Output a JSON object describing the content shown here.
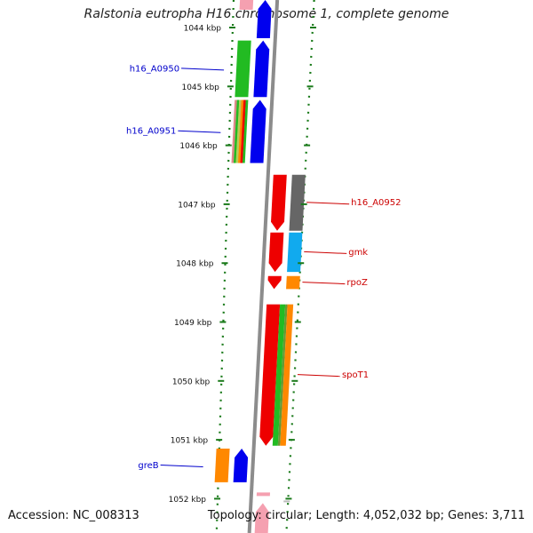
{
  "title": "Ralstonia eutropha H16 chromosome 1, complete genome",
  "footer": {
    "accession": "Accession: NC_008313",
    "summary": "Topology: circular; Length: 4,052,032 bp; Genes: 3,711"
  },
  "colors": {
    "backbone": "#8c8c8c",
    "ruler": "#1a7a1a",
    "forward_label": "#0000cc",
    "reverse_label": "#cc0000",
    "blue": "#0000ee",
    "green": "#22bb22",
    "red": "#ee0000",
    "gray": "#666666",
    "cyan": "#11aaee",
    "orange": "#ff8800",
    "pink": "#f5a0b0"
  },
  "ruler_ticks": [
    {
      "label": "1044 kbp",
      "kbp": 1044
    },
    {
      "label": "1045 kbp",
      "kbp": 1045
    },
    {
      "label": "1046 kbp",
      "kbp": 1046
    },
    {
      "label": "1047 kbp",
      "kbp": 1047
    },
    {
      "label": "1048 kbp",
      "kbp": 1048
    },
    {
      "label": "1049 kbp",
      "kbp": 1049
    },
    {
      "label": "1050 kbp",
      "kbp": 1050
    },
    {
      "label": "1051 kbp",
      "kbp": 1051
    },
    {
      "label": "1052 kbp",
      "kbp": 1052
    }
  ],
  "genes": [
    {
      "name": "h16_A0950",
      "strand": "forward",
      "start_kbp": 1044.22,
      "end_kbp": 1045.18
    },
    {
      "name": "h16_A0951",
      "strand": "forward",
      "start_kbp": 1045.22,
      "end_kbp": 1046.3
    },
    {
      "name": "h16_A0952",
      "strand": "reverse",
      "start_kbp": 1046.5,
      "end_kbp": 1047.45
    },
    {
      "name": "gmk",
      "strand": "reverse",
      "start_kbp": 1047.48,
      "end_kbp": 1048.15
    },
    {
      "name": "rpoZ",
      "strand": "reverse",
      "start_kbp": 1048.22,
      "end_kbp": 1048.44
    },
    {
      "name": "spoT1",
      "strand": "reverse",
      "start_kbp": 1048.7,
      "end_kbp": 1051.1
    },
    {
      "name": "greB",
      "strand": "forward",
      "start_kbp": 1051.15,
      "end_kbp": 1051.72
    }
  ]
}
